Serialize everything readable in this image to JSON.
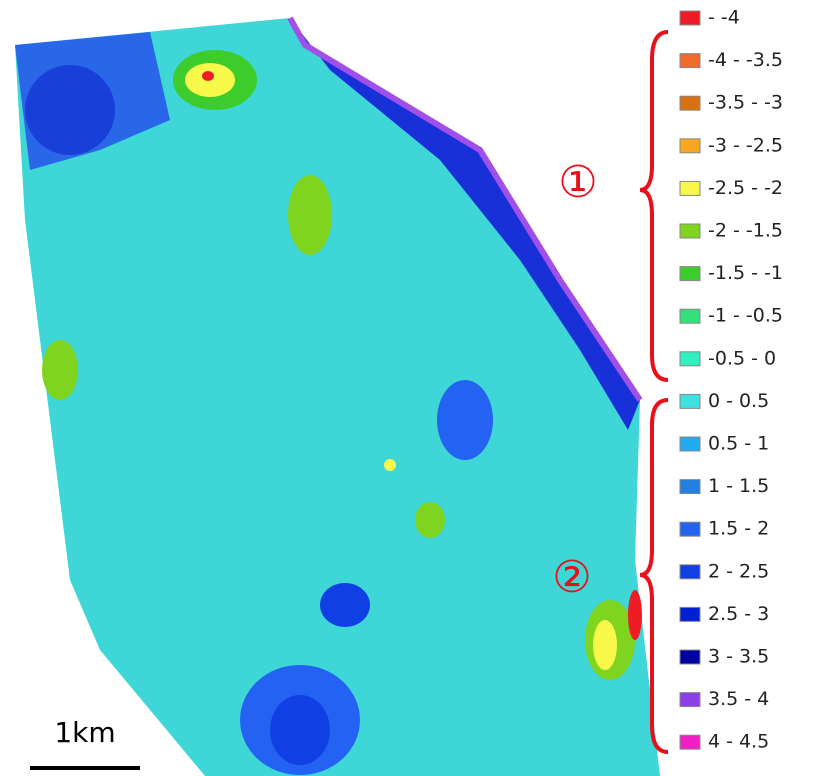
{
  "legend": {
    "items": [
      {
        "label": "- -4",
        "color": "#ee1c24"
      },
      {
        "label": "-4 - -3.5",
        "color": "#f26a2c"
      },
      {
        "label": "-3.5 - -3",
        "color": "#d8720f"
      },
      {
        "label": "-3 - -2.5",
        "color": "#f7a823"
      },
      {
        "label": "-2.5 - -2",
        "color": "#f8f84a"
      },
      {
        "label": "-2 - -1.5",
        "color": "#7fd420"
      },
      {
        "label": "-1.5 - -1",
        "color": "#3ccc2c"
      },
      {
        "label": "-1 - -0.5",
        "color": "#34e07c"
      },
      {
        "label": "-0.5 - 0",
        "color": "#30f0c0"
      },
      {
        "label": "0 - 0.5",
        "color": "#3ee0e0"
      },
      {
        "label": "0.5 - 1",
        "color": "#20aaf0"
      },
      {
        "label": "1 - 1.5",
        "color": "#2180e0"
      },
      {
        "label": "1.5 - 2",
        "color": "#2462f2"
      },
      {
        "label": "2 - 2.5",
        "color": "#1040e4"
      },
      {
        "label": "2.5 - 3",
        "color": "#0020d4"
      },
      {
        "label": "3 - 3.5",
        "color": "#0000a2"
      },
      {
        "label": "3.5 - 4",
        "color": "#8a40e6"
      },
      {
        "label": "4 - 4.5",
        "color": "#f020c4"
      }
    ]
  },
  "annotations": [
    "①",
    "②"
  ],
  "scale_bar": {
    "label": "1km"
  }
}
